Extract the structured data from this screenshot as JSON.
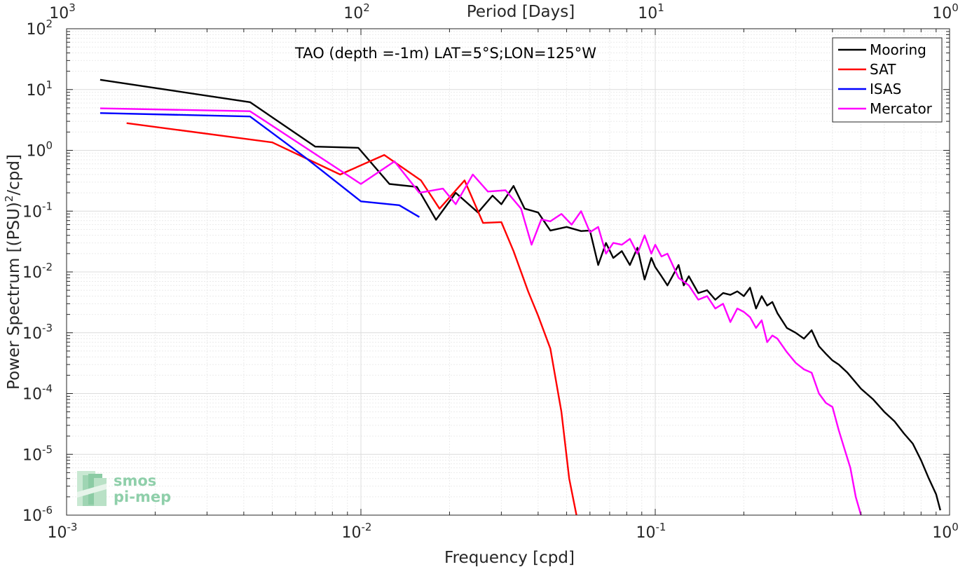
{
  "chart_data": {
    "type": "line",
    "title": "TAO (depth =-1m) LAT=5°S;LON=125°W",
    "xlabel": "Frequency [cpd]",
    "ylabel": "Power Spectrum [(PSU)^2/cpd]",
    "top_xlabel": "Period [Days]",
    "x_scale": "log",
    "y_scale": "log",
    "xlim": [
      0.001,
      1
    ],
    "ylim": [
      1e-06,
      100
    ],
    "grid": true,
    "legend_position": "top-right",
    "x_ticks": [
      {
        "value": 0.001,
        "base": "10",
        "exp": "-3"
      },
      {
        "value": 0.01,
        "base": "10",
        "exp": "-2"
      },
      {
        "value": 0.1,
        "base": "10",
        "exp": "-1"
      },
      {
        "value": 1,
        "base": "10",
        "exp": "0"
      }
    ],
    "y_ticks": [
      {
        "value": 100,
        "base": "10",
        "exp": "2"
      },
      {
        "value": 10,
        "base": "10",
        "exp": "1"
      },
      {
        "value": 1,
        "base": "10",
        "exp": "0"
      },
      {
        "value": 0.1,
        "base": "10",
        "exp": "-1"
      },
      {
        "value": 0.01,
        "base": "10",
        "exp": "-2"
      },
      {
        "value": 0.001,
        "base": "10",
        "exp": "-3"
      },
      {
        "value": 0.0001,
        "base": "10",
        "exp": "-4"
      },
      {
        "value": 1e-05,
        "base": "10",
        "exp": "-5"
      },
      {
        "value": 1e-06,
        "base": "10",
        "exp": "-6"
      }
    ],
    "top_ticks": [
      {
        "value": 0.001,
        "base": "10",
        "exp": "3"
      },
      {
        "value": 0.01,
        "base": "10",
        "exp": "2"
      },
      {
        "value": 0.1,
        "base": "10",
        "exp": "1"
      },
      {
        "value": 1,
        "base": "10",
        "exp": "0"
      }
    ],
    "series": [
      {
        "name": "Mooring",
        "color": "#000000",
        "points": [
          [
            0.0013,
            14.5
          ],
          [
            0.0042,
            6.2
          ],
          [
            0.007,
            1.15
          ],
          [
            0.0098,
            1.1
          ],
          [
            0.0125,
            0.28
          ],
          [
            0.0155,
            0.25
          ],
          [
            0.018,
            0.072
          ],
          [
            0.021,
            0.2
          ],
          [
            0.025,
            0.095
          ],
          [
            0.028,
            0.18
          ],
          [
            0.03,
            0.13
          ],
          [
            0.033,
            0.26
          ],
          [
            0.036,
            0.11
          ],
          [
            0.04,
            0.095
          ],
          [
            0.044,
            0.048
          ],
          [
            0.05,
            0.055
          ],
          [
            0.056,
            0.047
          ],
          [
            0.06,
            0.048
          ],
          [
            0.064,
            0.013
          ],
          [
            0.068,
            0.03
          ],
          [
            0.072,
            0.017
          ],
          [
            0.077,
            0.022
          ],
          [
            0.082,
            0.013
          ],
          [
            0.087,
            0.025
          ],
          [
            0.092,
            0.0075
          ],
          [
            0.097,
            0.017
          ],
          [
            0.1,
            0.012
          ],
          [
            0.105,
            0.0085
          ],
          [
            0.11,
            0.006
          ],
          [
            0.12,
            0.013
          ],
          [
            0.125,
            0.006
          ],
          [
            0.13,
            0.0085
          ],
          [
            0.14,
            0.0045
          ],
          [
            0.15,
            0.005
          ],
          [
            0.16,
            0.0035
          ],
          [
            0.17,
            0.0045
          ],
          [
            0.18,
            0.0042
          ],
          [
            0.19,
            0.0048
          ],
          [
            0.2,
            0.004
          ],
          [
            0.21,
            0.0055
          ],
          [
            0.22,
            0.0025
          ],
          [
            0.23,
            0.004
          ],
          [
            0.24,
            0.0028
          ],
          [
            0.25,
            0.0032
          ],
          [
            0.26,
            0.0021
          ],
          [
            0.28,
            0.0012
          ],
          [
            0.3,
            0.001
          ],
          [
            0.32,
            0.0008
          ],
          [
            0.34,
            0.0011
          ],
          [
            0.36,
            0.0006
          ],
          [
            0.38,
            0.00045
          ],
          [
            0.4,
            0.00035
          ],
          [
            0.42,
            0.0003
          ],
          [
            0.45,
            0.00022
          ],
          [
            0.5,
            0.00012
          ],
          [
            0.55,
            8e-05
          ],
          [
            0.6,
            5e-05
          ],
          [
            0.65,
            3.5e-05
          ],
          [
            0.7,
            2.2e-05
          ],
          [
            0.75,
            1.5e-05
          ],
          [
            0.8,
            8e-06
          ],
          [
            0.85,
            4e-06
          ],
          [
            0.9,
            2.2e-06
          ],
          [
            0.93,
            1.2e-06
          ]
        ]
      },
      {
        "name": "SAT",
        "color": "#ff0000",
        "points": [
          [
            0.0016,
            2.8
          ],
          [
            0.005,
            1.35
          ],
          [
            0.0085,
            0.4
          ],
          [
            0.012,
            0.84
          ],
          [
            0.016,
            0.32
          ],
          [
            0.0185,
            0.11
          ],
          [
            0.0225,
            0.32
          ],
          [
            0.026,
            0.064
          ],
          [
            0.03,
            0.066
          ],
          [
            0.033,
            0.022
          ],
          [
            0.037,
            0.0048
          ],
          [
            0.04,
            0.0019
          ],
          [
            0.044,
            0.00055
          ],
          [
            0.048,
            5e-05
          ],
          [
            0.051,
            4e-06
          ],
          [
            0.054,
            1e-06
          ]
        ]
      },
      {
        "name": "ISAS",
        "color": "#0000ff",
        "points": [
          [
            0.0013,
            4.1
          ],
          [
            0.0042,
            3.6
          ],
          [
            0.0065,
            0.75
          ],
          [
            0.01,
            0.145
          ],
          [
            0.0135,
            0.125
          ],
          [
            0.0158,
            0.08
          ]
        ]
      },
      {
        "name": "Mercator",
        "color": "#ff00ff",
        "points": [
          [
            0.0013,
            4.9
          ],
          [
            0.0042,
            4.4
          ],
          [
            0.0068,
            0.95
          ],
          [
            0.01,
            0.28
          ],
          [
            0.013,
            0.66
          ],
          [
            0.0158,
            0.2
          ],
          [
            0.019,
            0.235
          ],
          [
            0.021,
            0.13
          ],
          [
            0.024,
            0.4
          ],
          [
            0.027,
            0.21
          ],
          [
            0.031,
            0.22
          ],
          [
            0.035,
            0.11
          ],
          [
            0.038,
            0.028
          ],
          [
            0.041,
            0.073
          ],
          [
            0.044,
            0.068
          ],
          [
            0.048,
            0.09
          ],
          [
            0.052,
            0.06
          ],
          [
            0.056,
            0.1
          ],
          [
            0.06,
            0.045
          ],
          [
            0.064,
            0.055
          ],
          [
            0.068,
            0.02
          ],
          [
            0.072,
            0.03
          ],
          [
            0.077,
            0.028
          ],
          [
            0.082,
            0.035
          ],
          [
            0.087,
            0.02
          ],
          [
            0.092,
            0.04
          ],
          [
            0.097,
            0.02
          ],
          [
            0.1,
            0.028
          ],
          [
            0.105,
            0.018
          ],
          [
            0.11,
            0.02
          ],
          [
            0.12,
            0.008
          ],
          [
            0.13,
            0.006
          ],
          [
            0.14,
            0.0035
          ],
          [
            0.15,
            0.004
          ],
          [
            0.16,
            0.0025
          ],
          [
            0.17,
            0.003
          ],
          [
            0.18,
            0.0015
          ],
          [
            0.19,
            0.0025
          ],
          [
            0.2,
            0.0022
          ],
          [
            0.21,
            0.0018
          ],
          [
            0.22,
            0.0012
          ],
          [
            0.23,
            0.0016
          ],
          [
            0.24,
            0.0007
          ],
          [
            0.25,
            0.0009
          ],
          [
            0.26,
            0.0008
          ],
          [
            0.28,
            0.00048
          ],
          [
            0.3,
            0.00032
          ],
          [
            0.32,
            0.00025
          ],
          [
            0.34,
            0.00022
          ],
          [
            0.36,
            0.0001
          ],
          [
            0.38,
            7e-05
          ],
          [
            0.4,
            6e-05
          ],
          [
            0.42,
            2.5e-05
          ],
          [
            0.44,
            1.2e-05
          ],
          [
            0.46,
            6e-06
          ],
          [
            0.48,
            2e-06
          ],
          [
            0.5,
            1e-06
          ]
        ]
      }
    ]
  },
  "watermark": {
    "line1": "smos",
    "line2": "pi-mep"
  }
}
